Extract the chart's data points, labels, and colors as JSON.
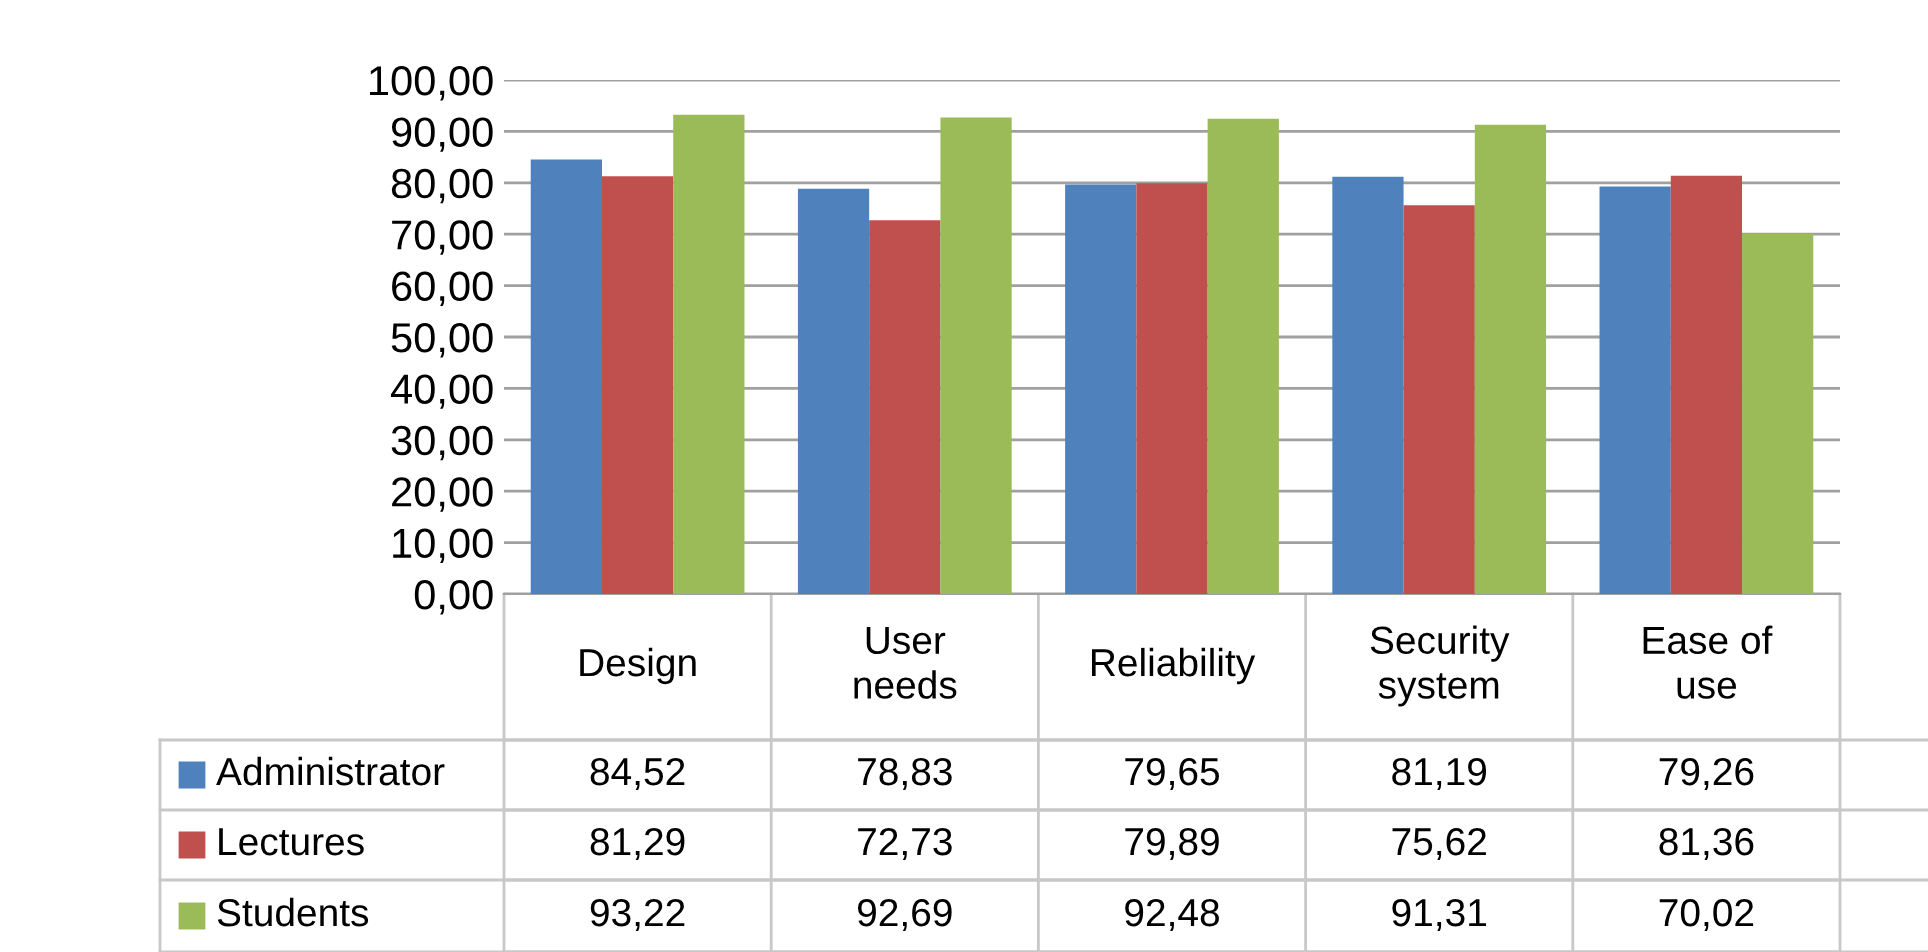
{
  "chart_data": {
    "type": "bar",
    "categories": [
      "Design",
      "User needs",
      "Reliability",
      "Security system",
      "Ease of use"
    ],
    "series": [
      {
        "name": "Administrator",
        "color": "#4f81bd",
        "values": [
          84.52,
          78.83,
          79.65,
          81.19,
          79.26
        ],
        "value_labels": [
          "84,52",
          "78,83",
          "79,65",
          "81,19",
          "79,26"
        ]
      },
      {
        "name": "Lectures",
        "color": "#c0504d",
        "values": [
          81.29,
          72.73,
          79.89,
          75.62,
          81.36
        ],
        "value_labels": [
          "81,29",
          "72,73",
          "79,89",
          "75,62",
          "81,36"
        ]
      },
      {
        "name": "Students",
        "color": "#9bbb59",
        "values": [
          93.22,
          92.69,
          92.48,
          91.31,
          70.02
        ],
        "value_labels": [
          "93,22",
          "92,69",
          "92,48",
          "91,31",
          "70,02"
        ]
      }
    ],
    "ylim": [
      0,
      100
    ],
    "yticks": [
      {
        "value": 0,
        "label": "0,00"
      },
      {
        "value": 10,
        "label": "10,00"
      },
      {
        "value": 20,
        "label": "20,00"
      },
      {
        "value": 30,
        "label": "30,00"
      },
      {
        "value": 40,
        "label": "40,00"
      },
      {
        "value": 50,
        "label": "50,00"
      },
      {
        "value": 60,
        "label": "60,00"
      },
      {
        "value": 70,
        "label": "70,00"
      },
      {
        "value": 80,
        "label": "80,00"
      },
      {
        "value": 90,
        "label": "90,00"
      },
      {
        "value": 100,
        "label": "100,00"
      }
    ],
    "grid": "y",
    "legend": "bottom left"
  }
}
